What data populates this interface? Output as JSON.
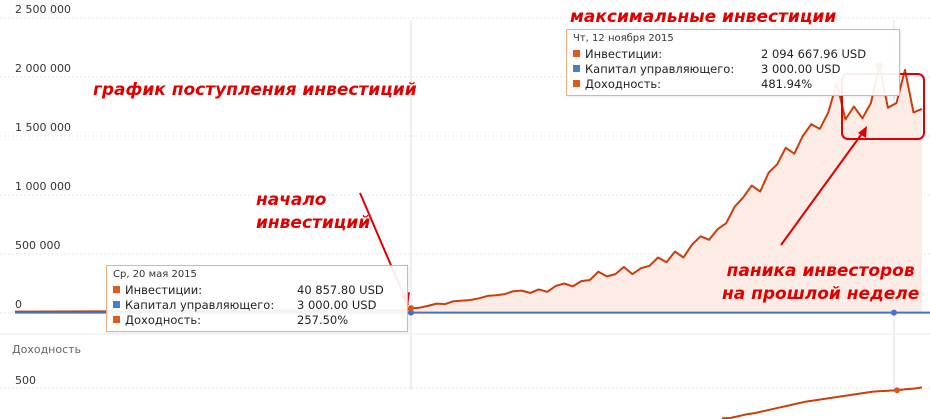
{
  "chart_data": [
    {
      "type": "area",
      "y_ticks": [
        "0",
        "500 000",
        "1 000 000",
        "1 500 000",
        "2 000 000",
        "2 500 000"
      ],
      "ylim": [
        0,
        2500000
      ],
      "grid": true,
      "series": [
        {
          "name": "Инвестиции",
          "color": "#cc3d0a",
          "values": [
            40857.8,
            45000,
            60000,
            80000,
            75000,
            100000,
            105000,
            110000,
            125000,
            145000,
            150000,
            160000,
            185000,
            190000,
            170000,
            200000,
            180000,
            230000,
            250000,
            225000,
            270000,
            280000,
            350000,
            310000,
            330000,
            390000,
            330000,
            380000,
            400000,
            470000,
            430000,
            520000,
            470000,
            580000,
            650000,
            620000,
            710000,
            760000,
            900000,
            980000,
            1080000,
            1030000,
            1190000,
            1260000,
            1400000,
            1350000,
            1500000,
            1600000,
            1560000,
            1700000,
            1950000,
            1640000,
            1750000,
            1650000,
            1780000,
            2094667.96,
            1740000,
            1780000,
            2060000,
            1700000,
            1730000
          ]
        },
        {
          "name": "Капитал управляющего",
          "color": "#4472c4",
          "value": 3000
        }
      ],
      "tooltips": [
        {
          "date": "Ср, 20 мая 2015",
          "rows": [
            {
              "label": "Инвестиции:",
              "value": "40 857.80  USD",
              "color": "#e05a1c"
            },
            {
              "label": "Капитал управляющего:",
              "value": "3 000.00  USD",
              "color": "#4a7fc9"
            },
            {
              "label": "Доходность:",
              "value": "257.50%",
              "color": "#e05a1c"
            }
          ]
        },
        {
          "date": "Чт, 12 ноября 2015",
          "rows": [
            {
              "label": "Инвестиции:",
              "value": "2 094 667.96  USD",
              "color": "#e05a1c"
            },
            {
              "label": "Капитал управляющего:",
              "value": "3 000.00  USD",
              "color": "#4a7fc9"
            },
            {
              "label": "Доходность:",
              "value": "481.94%",
              "color": "#e05a1c"
            }
          ]
        }
      ],
      "annotations": [
        "график поступления инвестиций",
        "максимальные инвестиции",
        "начало\nинвестиций",
        "паника инвесторов\nна прошлой неделе"
      ]
    },
    {
      "type": "line",
      "title": "Доходность",
      "y_ticks": [
        "500"
      ],
      "series": [
        {
          "name": "Доходность",
          "color": "#cc3d0a",
          "values": [
            257.5,
            260,
            275,
            290,
            300,
            315,
            330,
            345,
            360,
            375,
            390,
            400,
            410,
            420,
            430,
            440,
            450,
            460,
            470,
            475,
            478,
            481.94,
            490,
            495,
            505
          ]
        }
      ]
    }
  ]
}
